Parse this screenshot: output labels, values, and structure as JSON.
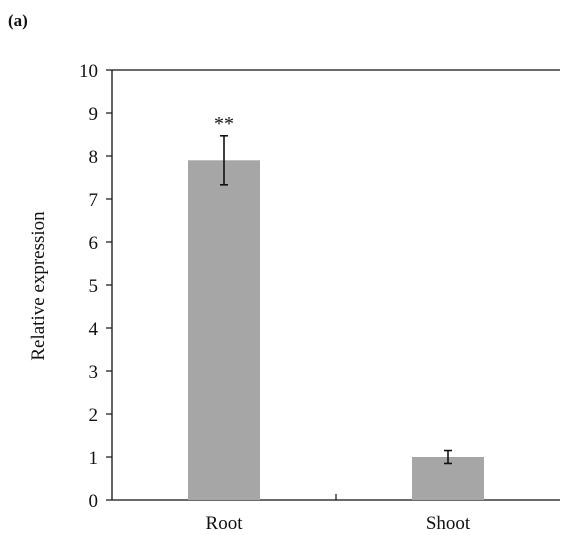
{
  "panel_label": "(a)",
  "chart_data": {
    "type": "bar",
    "title": "",
    "xlabel": "",
    "ylabel": "Relative expression",
    "categories": [
      "Root",
      "Shoot"
    ],
    "values": [
      7.9,
      1.0
    ],
    "errors": [
      0.57,
      0.15
    ],
    "annotations": [
      "**",
      ""
    ],
    "ylim": [
      0,
      10
    ],
    "yticks": [
      0,
      1,
      2,
      3,
      4,
      5,
      6,
      7,
      8,
      9,
      10
    ],
    "bar_color": "#a6a6a6",
    "grid": false
  }
}
